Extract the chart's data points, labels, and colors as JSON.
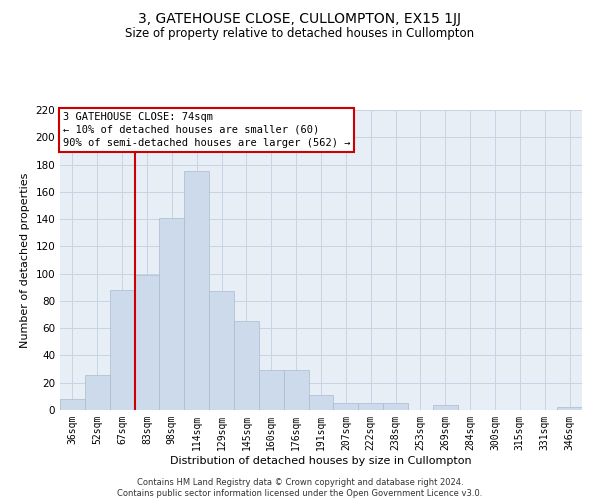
{
  "title": "3, GATEHOUSE CLOSE, CULLOMPTON, EX15 1JJ",
  "subtitle": "Size of property relative to detached houses in Cullompton",
  "xlabel": "Distribution of detached houses by size in Cullompton",
  "ylabel": "Number of detached properties",
  "bar_labels": [
    "36sqm",
    "52sqm",
    "67sqm",
    "83sqm",
    "98sqm",
    "114sqm",
    "129sqm",
    "145sqm",
    "160sqm",
    "176sqm",
    "191sqm",
    "207sqm",
    "222sqm",
    "238sqm",
    "253sqm",
    "269sqm",
    "284sqm",
    "300sqm",
    "315sqm",
    "331sqm",
    "346sqm"
  ],
  "bar_values": [
    8,
    26,
    88,
    99,
    141,
    175,
    87,
    65,
    29,
    29,
    11,
    5,
    5,
    5,
    0,
    4,
    0,
    0,
    0,
    0,
    2
  ],
  "bar_color": "#ccdaeb",
  "bar_edge_color": "#aabbcc",
  "vline_color": "#cc0000",
  "vline_x_index": 2.5,
  "ylim": [
    0,
    220
  ],
  "yticks": [
    0,
    20,
    40,
    60,
    80,
    100,
    120,
    140,
    160,
    180,
    200,
    220
  ],
  "annotation_text": "3 GATEHOUSE CLOSE: 74sqm\n← 10% of detached houses are smaller (60)\n90% of semi-detached houses are larger (562) →",
  "annotation_box_facecolor": "#ffffff",
  "annotation_box_edgecolor": "#cc0000",
  "footer_text": "Contains HM Land Registry data © Crown copyright and database right 2024.\nContains public sector information licensed under the Open Government Licence v3.0.",
  "grid_color": "#c8d4e4",
  "bg_color": "#e8eef6",
  "title_fontsize": 10,
  "subtitle_fontsize": 8.5,
  "ylabel_fontsize": 8,
  "xlabel_fontsize": 8,
  "tick_fontsize": 7,
  "footer_fontsize": 6,
  "annotation_fontsize": 7.5
}
